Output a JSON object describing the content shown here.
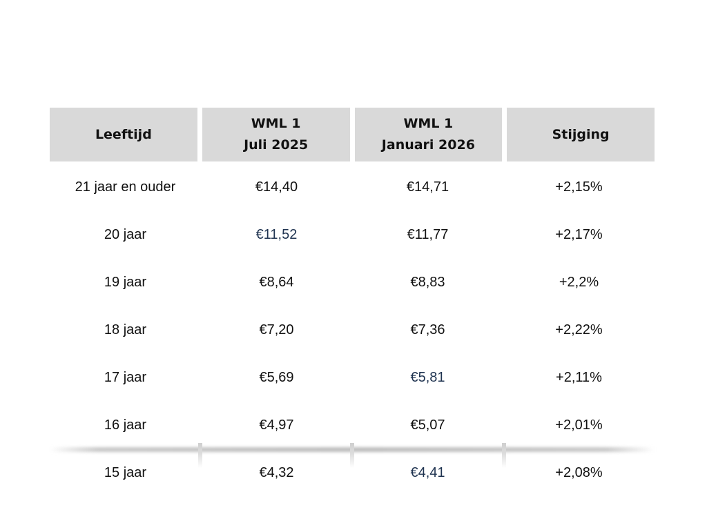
{
  "table": {
    "headers": [
      {
        "line1": "Leeftijd",
        "line2": ""
      },
      {
        "line1": "WML 1",
        "line2": "Juli 2025"
      },
      {
        "line1": "WML 1",
        "line2": "Januari 2026"
      },
      {
        "line1": "Stijging",
        "line2": ""
      }
    ],
    "rows": [
      [
        "21 jaar en ouder",
        "€14,40",
        "€14,71",
        "+2,15%"
      ],
      [
        "20 jaar",
        "€11,52",
        "€11,77",
        "+2,17%"
      ],
      [
        "19 jaar",
        "€8,64",
        "€8,83",
        "+2,2%"
      ],
      [
        "18 jaar",
        "€7,20",
        "€7,36",
        "+2,22%"
      ],
      [
        "17 jaar",
        "€5,69",
        "€5,81",
        "+2,11%"
      ],
      [
        "16 jaar",
        "€4,97",
        "€5,07",
        "+2,01%"
      ],
      [
        "15 jaar",
        "€4,32",
        "€4,41",
        "+2,08%"
      ]
    ]
  },
  "colors": {
    "header_background": "#d9d9d9",
    "text": "#111111",
    "highlight_text": "#1f3350"
  }
}
